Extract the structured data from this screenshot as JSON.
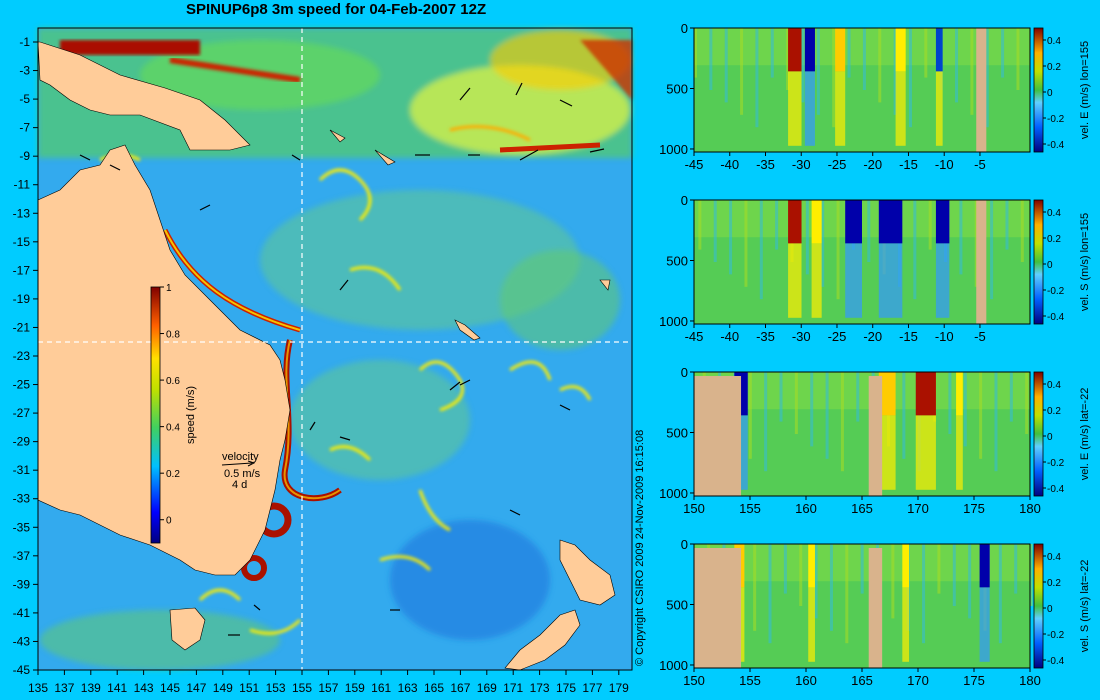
{
  "title": "SPINUP6p8 3m speed for 04-Feb-2007 12Z",
  "copyright": "© Copyright CSIRO 2009   24-Nov-2009 16:15:08",
  "colors": {
    "background": "#00ccff",
    "land": "#ffcc99",
    "section_land": "#d9b38c",
    "ocean_low": "#3399ff",
    "ocean_mid": "#55cc55",
    "jet": "#ffff00",
    "jet_core": "#cc3300",
    "jet_peak": "#990000"
  },
  "map": {
    "lon_ticks": [
      "135",
      "137",
      "139",
      "141",
      "143",
      "145",
      "147",
      "149",
      "151",
      "153",
      "155",
      "157",
      "159",
      "161",
      "163",
      "165",
      "167",
      "169",
      "171",
      "173",
      "175",
      "177",
      "179"
    ],
    "lat_ticks": [
      "-1",
      "-3",
      "-5",
      "-7",
      "-9",
      "-11",
      "-13",
      "-15",
      "-17",
      "-19",
      "-21",
      "-23",
      "-25",
      "-27",
      "-29",
      "-31",
      "-33",
      "-35",
      "-37",
      "-39",
      "-41",
      "-43",
      "-45"
    ],
    "colorbar": {
      "label": "speed (m/s)",
      "ticks": [
        "1",
        "0.8",
        "0.6",
        "0.4",
        "0.2",
        "0"
      ]
    },
    "velocity_key": {
      "title": "velocity",
      "scale": "0.5 m/s",
      "duration": "4 d"
    }
  },
  "panels": [
    {
      "label": "vel. E (m/s) lon=155",
      "x_ticks": [
        "-45",
        "-40",
        "-35",
        "-30",
        "-25",
        "-20",
        "-15",
        "-10",
        "-5"
      ],
      "y_ticks": [
        "0",
        "500",
        "1000"
      ],
      "cbar_ticks": [
        "0.4",
        "0.2",
        "0",
        "-0.2",
        "-0.4"
      ]
    },
    {
      "label": "vel. S (m/s) lon=155",
      "x_ticks": [
        "-45",
        "-40",
        "-35",
        "-30",
        "-25",
        "-20",
        "-15",
        "-10",
        "-5"
      ],
      "y_ticks": [
        "0",
        "500",
        "1000"
      ],
      "cbar_ticks": [
        "0.4",
        "0.2",
        "0",
        "-0.2",
        "-0.4"
      ]
    },
    {
      "label": "vel. E (m/s) lat=-22",
      "x_ticks": [
        "150",
        "155",
        "160",
        "165",
        "170",
        "175",
        "180"
      ],
      "y_ticks": [
        "0",
        "500",
        "1000"
      ],
      "cbar_ticks": [
        "0.4",
        "0.2",
        "0",
        "-0.2",
        "-0.4"
      ]
    },
    {
      "label": "vel. S (m/s) lat=-22",
      "x_ticks": [
        "150",
        "155",
        "160",
        "165",
        "170",
        "175",
        "180"
      ],
      "y_ticks": [
        "0",
        "500",
        "1000"
      ],
      "cbar_ticks": [
        "0.4",
        "0.2",
        "0",
        "-0.2",
        "-0.4"
      ]
    }
  ]
}
